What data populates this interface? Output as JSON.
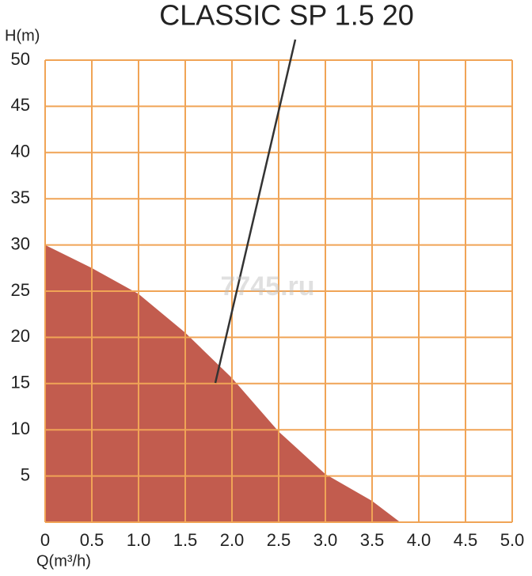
{
  "chart_data": {
    "type": "area",
    "title": "CLASSIC SP 1.5 20",
    "y_label": "H(m)",
    "x_label": "Q(m³/h)",
    "watermark": "7745.ru",
    "x": [
      0,
      0.5,
      1.0,
      1.5,
      2.0,
      2.5,
      3.0,
      3.5,
      3.8
    ],
    "values": [
      30,
      27.5,
      24.7,
      20.5,
      15.6,
      9.8,
      5.2,
      2.3,
      0
    ],
    "color": "#c25c4e",
    "grid": true,
    "grid_color": "#f0a456",
    "xlim": [
      0,
      5
    ],
    "ylim": [
      0,
      50
    ],
    "xticks": [
      0,
      0.5,
      {
        "value": 1,
        "label": "1.0"
      },
      1.5,
      {
        "value": 2,
        "label": "2.0"
      },
      2.5,
      {
        "value": 3,
        "label": "3.0"
      },
      3.5,
      {
        "value": 4,
        "label": "4.0"
      },
      4.5,
      {
        "value": 5,
        "label": "5.0"
      }
    ],
    "yticks": [
      5,
      10,
      15,
      20,
      25,
      30,
      35,
      40,
      45,
      50
    ]
  }
}
